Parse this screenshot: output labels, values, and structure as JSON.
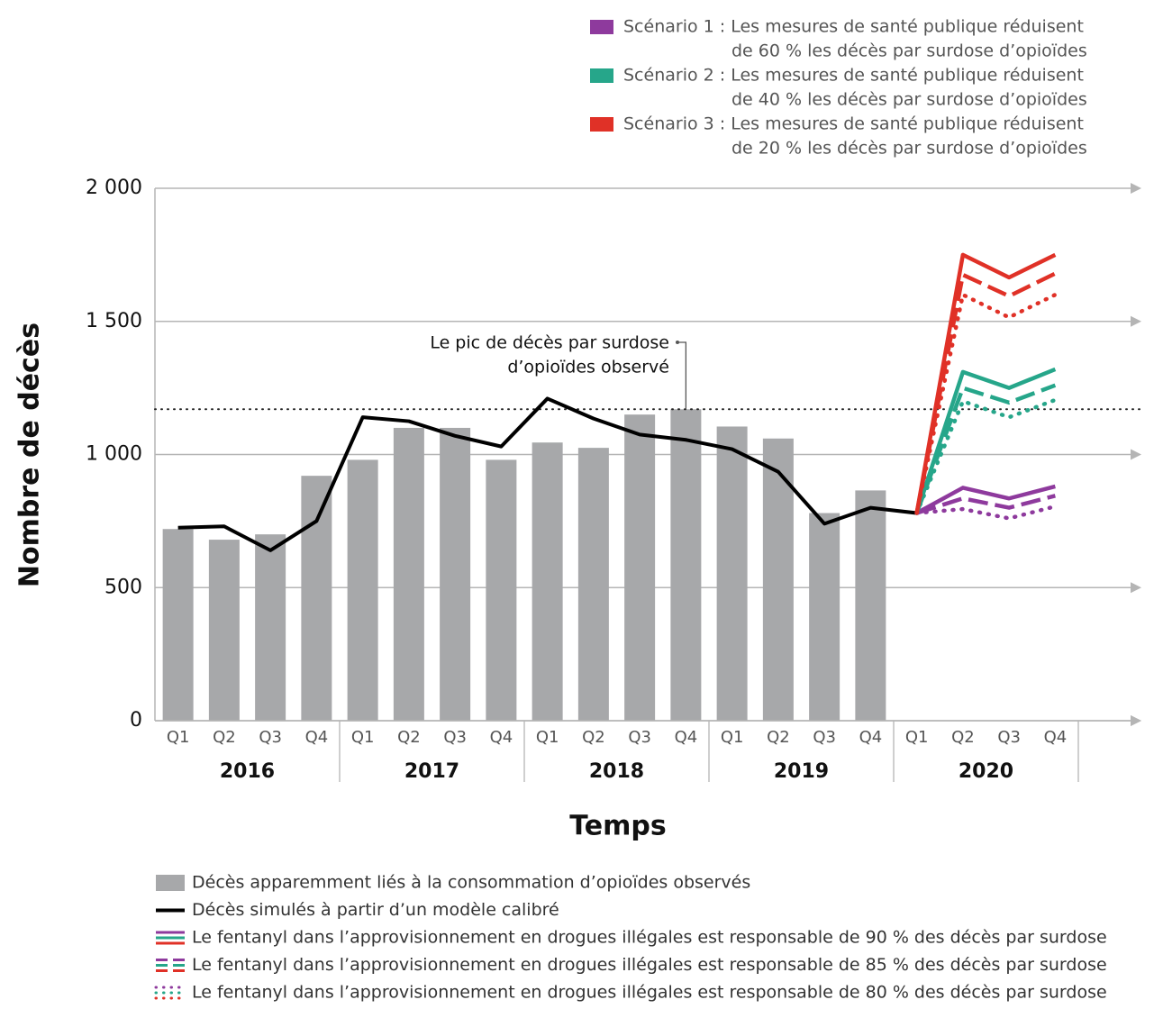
{
  "chart_data": {
    "type": "bar-line",
    "y_label": "Nombre de décès",
    "x_label": "Temps",
    "categories": [
      "Q1",
      "Q2",
      "Q3",
      "Q4",
      "Q1",
      "Q2",
      "Q3",
      "Q4",
      "Q1",
      "Q2",
      "Q3",
      "Q4",
      "Q1",
      "Q2",
      "Q3",
      "Q4",
      "Q1",
      "Q2",
      "Q3",
      "Q4"
    ],
    "years": [
      "2016",
      "2017",
      "2018",
      "2019",
      "2020"
    ],
    "ylim": [
      0,
      2000
    ],
    "yticks": [
      0,
      500,
      {
        "value": 1000,
        "label": "1 000"
      },
      {
        "value": 1500,
        "label": "1 500"
      },
      {
        "value": 2000,
        "label": "2 000"
      }
    ],
    "grid": true,
    "bars": {
      "name": "Décès apparemment liés à la consommation d’opioïdes observés",
      "color": "#a7a8aa",
      "values": [
        720,
        680,
        700,
        920,
        980,
        1100,
        1100,
        980,
        1045,
        1025,
        1150,
        1170,
        1105,
        1060,
        780,
        865,
        null,
        null,
        null,
        null
      ]
    },
    "simulated": {
      "name": "Décès simulés à partir d’un modèle calibré",
      "color": "#000000",
      "values": [
        725,
        730,
        640,
        750,
        1140,
        1125,
        1070,
        1030,
        1210,
        1135,
        1075,
        1055,
        1020,
        935,
        740,
        800,
        780,
        null,
        null,
        null
      ]
    },
    "reference_line": 1170,
    "annotation": [
      "Le pic de décès par surdose",
      "d’opioïdes observé"
    ],
    "fentanyl_levels": [
      {
        "name": "Le fentanyl dans l’approvisionnement en drogues illégales est responsable de 90 % des décès par surdose",
        "style": "solid"
      },
      {
        "name": "Le fentanyl dans l’approvisionnement en drogues illégales est responsable de 85 % des décès par surdose",
        "style": "dashed"
      },
      {
        "name": "Le fentanyl dans l’approvisionnement en drogues illégales est responsable de 80 % des décès par surdose",
        "style": "dotted"
      }
    ],
    "scenarios": [
      {
        "name": [
          "Scénario 1 : Les mesures de santé publique réduisent",
          "de 60 % les décès par surdose d’opioïdes"
        ],
        "color": "#8e3a9d",
        "values": [
          [
            null,
            null,
            null,
            null,
            null,
            null,
            null,
            null,
            null,
            null,
            null,
            null,
            null,
            null,
            null,
            null,
            780,
            875,
            835,
            880
          ],
          [
            null,
            null,
            null,
            null,
            null,
            null,
            null,
            null,
            null,
            null,
            null,
            null,
            null,
            null,
            null,
            null,
            780,
            835,
            800,
            845
          ],
          [
            null,
            null,
            null,
            null,
            null,
            null,
            null,
            null,
            null,
            null,
            null,
            null,
            null,
            null,
            null,
            null,
            780,
            795,
            760,
            805
          ]
        ]
      },
      {
        "name": [
          "Scénario 2 : Les mesures de santé publique réduisent",
          "de 40 % les décès par surdose d’opioïdes"
        ],
        "color": "#26a68a",
        "values": [
          [
            null,
            null,
            null,
            null,
            null,
            null,
            null,
            null,
            null,
            null,
            null,
            null,
            null,
            null,
            null,
            null,
            780,
            1310,
            1250,
            1320
          ],
          [
            null,
            null,
            null,
            null,
            null,
            null,
            null,
            null,
            null,
            null,
            null,
            null,
            null,
            null,
            null,
            null,
            780,
            1250,
            1195,
            1260
          ],
          [
            null,
            null,
            null,
            null,
            null,
            null,
            null,
            null,
            null,
            null,
            null,
            null,
            null,
            null,
            null,
            null,
            780,
            1200,
            1140,
            1205
          ]
        ]
      },
      {
        "name": [
          "Scénario 3 : Les mesures de santé publique réduisent",
          "de 20 % les décès par surdose d’opioïdes"
        ],
        "color": "#e03127",
        "values": [
          [
            null,
            null,
            null,
            null,
            null,
            null,
            null,
            null,
            null,
            null,
            null,
            null,
            null,
            null,
            null,
            null,
            780,
            1750,
            1665,
            1750
          ],
          [
            null,
            null,
            null,
            null,
            null,
            null,
            null,
            null,
            null,
            null,
            null,
            null,
            null,
            null,
            null,
            null,
            780,
            1675,
            1595,
            1680
          ],
          [
            null,
            null,
            null,
            null,
            null,
            null,
            null,
            null,
            null,
            null,
            null,
            null,
            null,
            null,
            null,
            null,
            780,
            1600,
            1515,
            1600
          ]
        ]
      }
    ]
  }
}
